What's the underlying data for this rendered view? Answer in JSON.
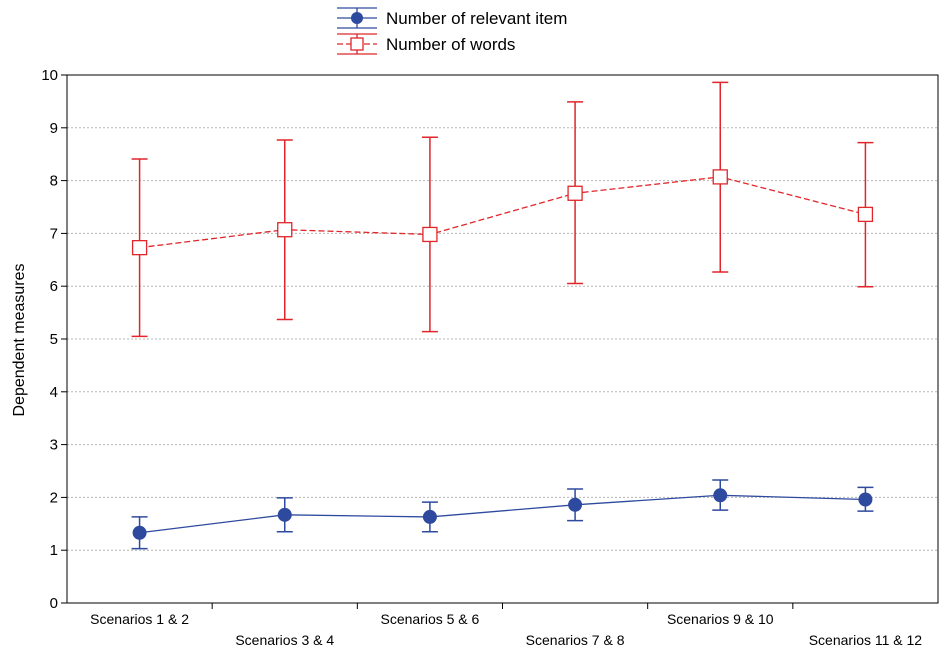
{
  "chart_data": {
    "type": "line",
    "title": "",
    "xlabel": "",
    "ylabel": "Dependent measures",
    "ylim": [
      0,
      10
    ],
    "yticks": [
      0,
      1,
      2,
      3,
      4,
      5,
      6,
      7,
      8,
      9,
      10
    ],
    "grid": true,
    "legend_position": "top-center",
    "categories": [
      "Scenarios 1 & 2",
      "Scenarios 3 & 4",
      "Scenarios 5 & 6",
      "Scenarios 7 & 8",
      "Scenarios 9 & 10",
      "Scenarios 11 & 12"
    ],
    "series": [
      {
        "name": "Number of relevant item",
        "color": "#2e4a9e",
        "marker": "filled-circle",
        "line_style": "solid",
        "values": [
          1.33,
          1.67,
          1.63,
          1.86,
          2.04,
          1.96
        ],
        "error_low": [
          1.03,
          1.35,
          1.35,
          1.56,
          1.76,
          1.74
        ],
        "error_high": [
          1.63,
          1.99,
          1.91,
          2.16,
          2.33,
          2.19
        ]
      },
      {
        "name": "Number of words",
        "color": "#e0262a",
        "marker": "open-square",
        "line_style": "dashed",
        "values": [
          6.73,
          7.07,
          6.98,
          7.76,
          8.07,
          7.36
        ],
        "error_low": [
          5.05,
          5.37,
          5.14,
          6.05,
          6.27,
          5.99
        ],
        "error_high": [
          8.41,
          8.77,
          8.82,
          9.49,
          9.86,
          8.72
        ]
      }
    ]
  }
}
